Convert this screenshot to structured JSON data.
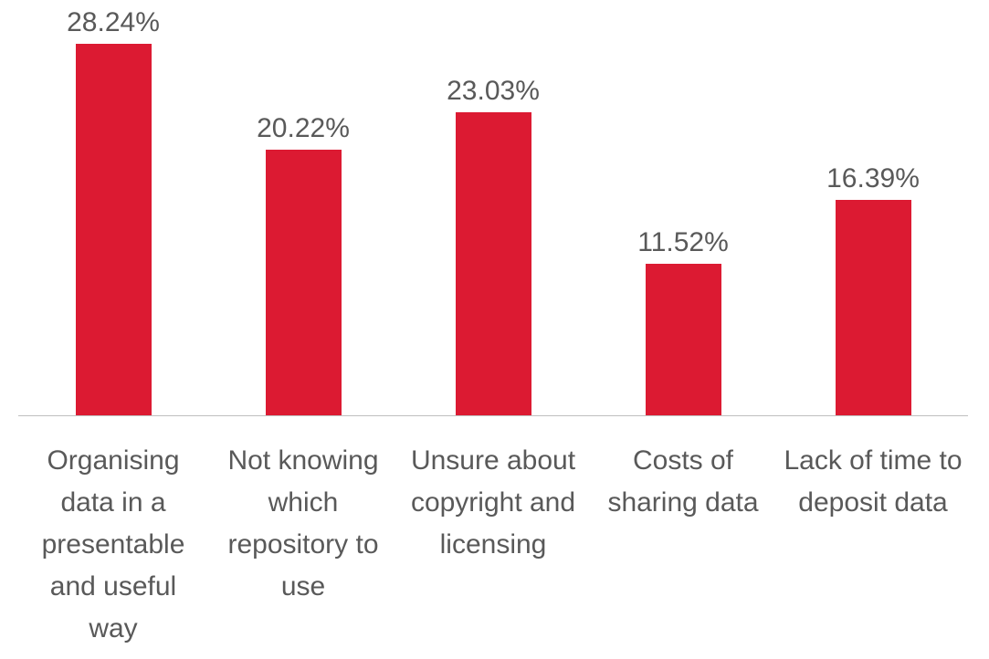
{
  "chart_data": {
    "type": "bar",
    "categories": [
      "Organising data in a presentable and useful way",
      "Not knowing which repository to use",
      "Unsure about copyright and licensing",
      "Costs of sharing data",
      "Lack of time to deposit data"
    ],
    "values": [
      28.24,
      20.22,
      23.03,
      11.52,
      16.39
    ],
    "value_labels": [
      "28.24%",
      "20.22%",
      "23.03%",
      "11.52%",
      "16.39%"
    ],
    "color": "#dc1a32"
  }
}
